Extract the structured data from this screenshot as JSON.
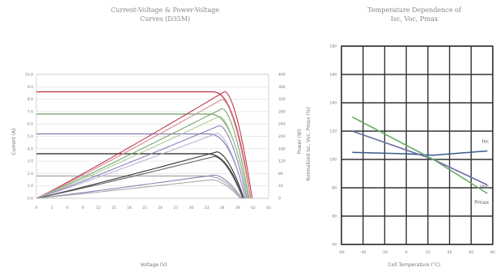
{
  "chart_data": [
    {
      "type": "line",
      "title": "Current-Voltage & Power-Voltage",
      "subtitle": "Curves (D35M)",
      "xlabel": "Voltage (V)",
      "ylabel": "Current (A)",
      "y2label": "Power (W)",
      "xlim": [
        0,
        45
      ],
      "ylim": [
        0,
        10
      ],
      "y2lim": [
        0,
        400
      ],
      "x_ticks": [
        "0",
        "3",
        "6",
        "9",
        "12",
        "15",
        "18",
        "21",
        "24",
        "27",
        "30",
        "33",
        "36",
        "39",
        "42",
        "45"
      ],
      "y_ticks": [
        "0.0",
        "1.0",
        "2.0",
        "3.0",
        "4.0",
        "5.0",
        "6.0",
        "7.0",
        "8.0",
        "9.0",
        "10.0"
      ],
      "y2_ticks": [
        "0",
        "40",
        "80",
        "120",
        "160",
        "200",
        "240",
        "280",
        "320",
        "360",
        "400"
      ],
      "iv_curves": [
        {
          "color": "#c0394b",
          "isc": 8.6,
          "voc": 41.5
        },
        {
          "color": "#7aa86e",
          "isc": 6.8,
          "voc": 41.0
        },
        {
          "color": "#8a82b8",
          "isc": 5.2,
          "voc": 40.5
        },
        {
          "color": "#333333",
          "isc": 3.6,
          "voc": 40.0
        },
        {
          "color": "#aaaaaa",
          "isc": 1.8,
          "voc": 39.5
        }
      ],
      "pv_curves": [
        {
          "color": "#c0394b",
          "pmax": 345,
          "vmp": 36.5,
          "voc": 41.8
        },
        {
          "color": "#d88a96",
          "pmax": 320,
          "vmp": 36.0,
          "voc": 41.5
        },
        {
          "color": "#7aa86e",
          "pmax": 290,
          "vmp": 36.0,
          "voc": 41.2
        },
        {
          "color": "#a9cf9c",
          "pmax": 265,
          "vmp": 35.5,
          "voc": 41.0
        },
        {
          "color": "#8a82b8",
          "pmax": 235,
          "vmp": 35.5,
          "voc": 40.8
        },
        {
          "color": "#b8b2d8",
          "pmax": 210,
          "vmp": 35.0,
          "voc": 40.6
        },
        {
          "color": "#333333",
          "pmax": 150,
          "vmp": 35.0,
          "voc": 40.2
        },
        {
          "color": "#666666",
          "pmax": 135,
          "vmp": 34.5,
          "voc": 40.0
        },
        {
          "color": "#8a82b8",
          "pmax": 75,
          "vmp": 34.5,
          "voc": 39.8
        },
        {
          "color": "#aaaaaa",
          "pmax": 60,
          "vmp": 34.0,
          "voc": 39.5
        }
      ]
    },
    {
      "type": "line",
      "title": "Temperature Dependence of",
      "subtitle": "Isc, Voc, Pmax",
      "xlabel": "Cell Temperature (°C)",
      "ylabel": "Normalized Isc, Voc, Pmax (%)",
      "xlim": [
        -60,
        80
      ],
      "ylim": [
        40,
        180
      ],
      "x_ticks": [
        "-60",
        "-40",
        "-20",
        "0",
        "20",
        "40",
        "60",
        "80"
      ],
      "y_ticks": [
        "40",
        "60",
        "80",
        "100",
        "120",
        "140",
        "160",
        "180"
      ],
      "grid": true,
      "series": [
        {
          "name": "Isc",
          "color": "#3c5a8a",
          "x": [
            -50,
            0,
            25,
            75
          ],
          "y": [
            105,
            104,
            103,
            106
          ]
        },
        {
          "name": "Voc",
          "color": "#6a6fa8",
          "x": [
            -50,
            25,
            75
          ],
          "y": [
            120,
            100,
            82
          ]
        },
        {
          "name": "Pmax",
          "color": "#6aa86a",
          "x": [
            -50,
            25,
            75
          ],
          "y": [
            130,
            100,
            76
          ]
        }
      ]
    }
  ]
}
